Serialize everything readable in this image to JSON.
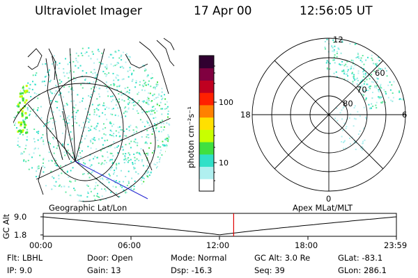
{
  "header": {
    "instrument": "Ultraviolet Imager",
    "date": "17 Apr 00",
    "time": "12:56:05 UT"
  },
  "colorbar": {
    "unit_label": "photon cm⁻²s⁻¹",
    "ticks": [
      "100",
      "10"
    ],
    "scale": "log",
    "colors": [
      "#ffffff",
      "#b0f0f0",
      "#30e0c8",
      "#40e040",
      "#c8ff00",
      "#ffe000",
      "#ff8000",
      "#ff2000",
      "#c00020",
      "#800040",
      "#300030"
    ]
  },
  "polar_plot": {
    "mlt_labels": {
      "top": "12",
      "right": "6",
      "bottom": "0",
      "left": "18"
    },
    "lat_labels": [
      "60",
      "70",
      "80"
    ]
  },
  "panel_labels": {
    "left": "Geographic Lat/Lon",
    "right": "Apex MLat/MLT"
  },
  "altitude_plot": {
    "axis_title": "GC Alt",
    "y_ticks": [
      "9.0",
      "1.8"
    ],
    "time_ticks": [
      "00:00",
      "06:00",
      "12:00",
      "18:00",
      "23:59"
    ],
    "marker_time": "12:56",
    "marker_color": "#e00000"
  },
  "info": {
    "row1": [
      {
        "label": "Flt:",
        "value": "LBHL"
      },
      {
        "label": "Door:",
        "value": "Open"
      },
      {
        "label": "Mode:",
        "value": "Normal"
      },
      {
        "label": "GC Alt:",
        "value": "3.0 Re"
      },
      {
        "label": "GLat:",
        "value": "-83.1"
      }
    ],
    "row2": [
      {
        "label": "IP:",
        "value": "9.0"
      },
      {
        "label": "Gain:",
        "value": "13"
      },
      {
        "label": "Dsp:",
        "value": "-16.3"
      },
      {
        "label": "Seq:",
        "value": "39"
      },
      {
        "label": "GLon:",
        "value": "286.1"
      }
    ]
  }
}
